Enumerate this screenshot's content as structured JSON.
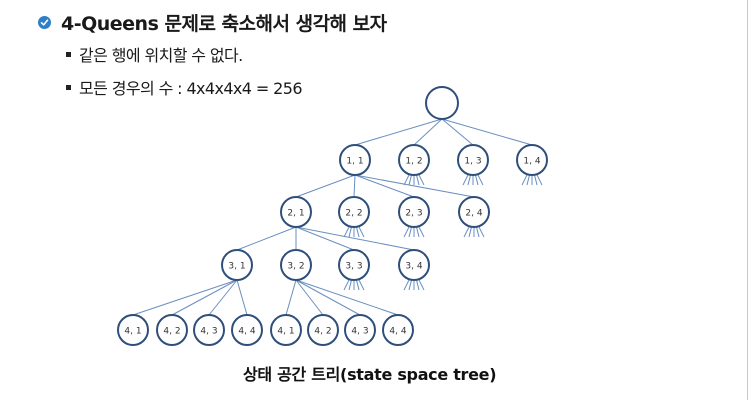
{
  "heading": {
    "title": "4-Queens 문제로 축소해서 생각해 보자",
    "icon": "check-circle-icon",
    "icon_color": "#2e7fc8"
  },
  "bullets": [
    {
      "text": "같은 행에 위치할 수 없다."
    },
    {
      "text": "모든 경우의 수 : 4x4x4x4 = 256"
    }
  ],
  "tree": {
    "root_label": "",
    "node_stroke_color": "#2f4f7a",
    "edge_color": "#6a8fc0",
    "level1": [
      "1, 1",
      "1, 2",
      "1, 3",
      "1, 4"
    ],
    "level2": [
      "2, 1",
      "2, 2",
      "2, 3",
      "2, 4"
    ],
    "level3": [
      "3, 1",
      "3, 2",
      "3, 3",
      "3, 4"
    ],
    "level4": [
      "4, 1",
      "4, 2",
      "4, 3",
      "4, 4",
      "4, 1",
      "4, 2",
      "4, 3",
      "4, 4"
    ]
  },
  "caption": "상태 공간 트리(state space tree)"
}
